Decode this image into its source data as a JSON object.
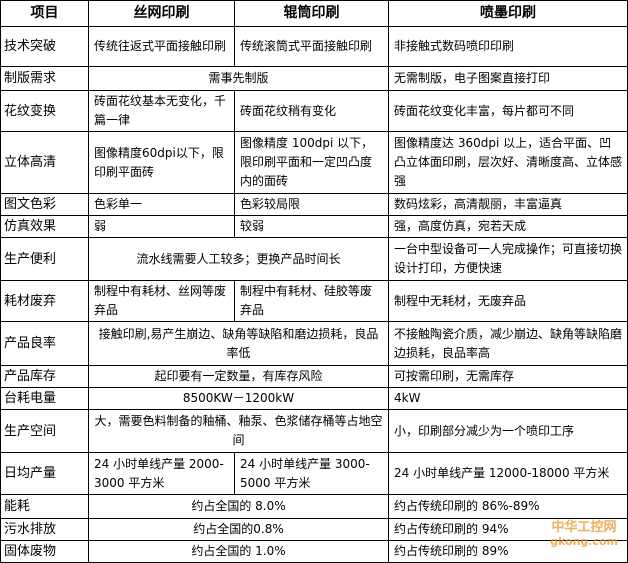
{
  "table": {
    "header": [
      "项目",
      "丝网印刷",
      "辊筒印刷",
      "喷墨印刷"
    ],
    "rows": [
      [
        "技术突破",
        "传统往返式平面接触印刷",
        "传统滚筒式平面接触印刷",
        "非接触式数码喷印印刷"
      ],
      [
        "制版需求",
        "需事先制版",
        "无需制版，电子图案直接打印"
      ],
      [
        "花纹变换",
        "砖面花纹基本无变化，千篇一律",
        "砖面花纹稍有变化",
        "砖面花纹变化丰富，每片都可不同"
      ],
      [
        "立体高清",
        "图像精度60dpi以下，限印刷平面砖",
        "图像精度 100dpi 以下，限印刷平面和一定凹凸度内的面砖",
        "图像精度达 360dpi 以上，适合平面、凹凸立体面印刷，层次好、清晰度高、立体感强"
      ],
      [
        "图文色彩",
        "色彩单一",
        "色彩较局限",
        "数码炫彩，高清靓丽，丰富逼真"
      ],
      [
        "仿真效果",
        "弱",
        "较弱",
        "强，高度仿真，宛若天成"
      ],
      [
        "生产便利",
        "流水线需要人工较多；更换产品时间长",
        "一台中型设备可一人完成操作；可直接切换设计打印，方便快速"
      ],
      [
        "耗材废弃",
        "制程中有耗材、丝网等废弃品",
        "制程中有耗材、硅胶等废弃品",
        "制程中无耗材，无废弃品"
      ],
      [
        "产品良率",
        "接触印刷,易产生崩边、缺角等缺陷和磨边损耗，良品率低",
        "不接触陶瓷介质，减少崩边、缺角等缺陷磨边损耗，良品率高"
      ],
      [
        "产品库存",
        "起印要有一定数量，有库存风险",
        "可按需印刷，无需库存"
      ],
      [
        "台耗电量",
        "8500KW－1200kW",
        "4kW"
      ],
      [
        "生产空间",
        "大，需要色料制备的釉桶、釉泵、色浆储存桶等占地空间",
        "小，印刷部分减少为一个喷印工序"
      ],
      [
        "日均产量",
        "24 小时单线产量 2000-3000 平方米",
        "24 小时单线产量 3000-5000 平方米",
        "24 小时单线产量 12000-18000 平方米"
      ],
      [
        "能耗",
        "约占全国的 8.0%",
        "约占传统印刷的 86%-89%"
      ],
      [
        "污水排放",
        "约占全国的0.8%",
        "约占传统印刷的 94%"
      ],
      [
        "固体废物",
        "约占全国的 1.0%",
        "约占传统印刷的 89%"
      ]
    ]
  },
  "watermark": [
    "中华工控网",
    "gkong.com"
  ]
}
